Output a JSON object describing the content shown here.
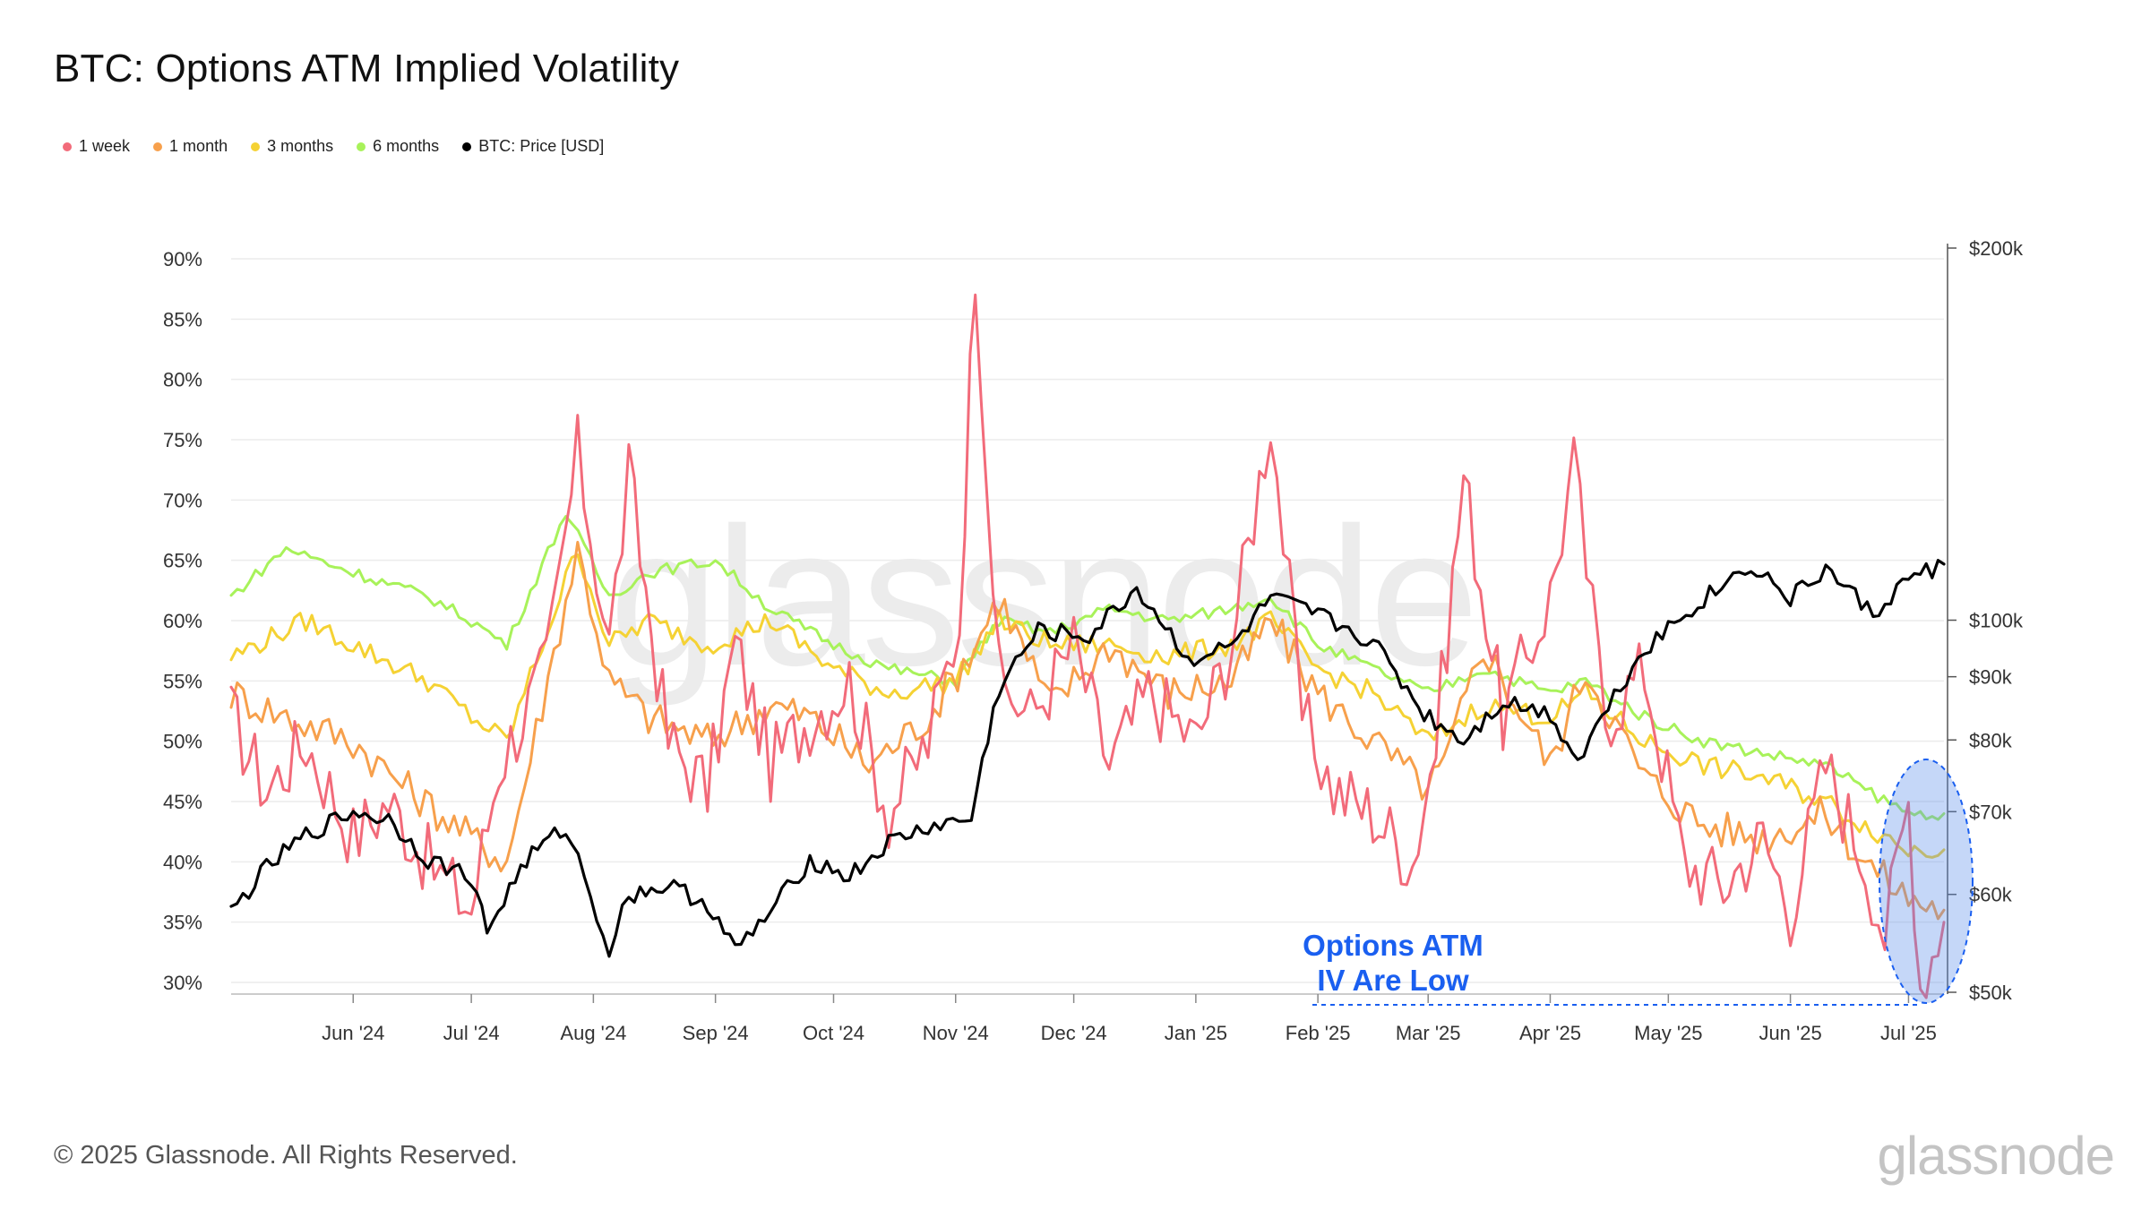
{
  "title": "BTC: Options ATM Implied Volatility",
  "legend": [
    {
      "label": "1 week",
      "color": "#f26b7a"
    },
    {
      "label": "1 month",
      "color": "#f7a04c"
    },
    {
      "label": "3 months",
      "color": "#f5d234"
    },
    {
      "label": "6 months",
      "color": "#a8f25a"
    },
    {
      "label": "BTC: Price [USD]",
      "color": "#000000"
    }
  ],
  "watermark": "glassnode",
  "footer": {
    "copyright": "© 2025 Glassnode. All Rights Reserved.",
    "logo": "glassnode"
  },
  "annotation": {
    "line1": "Options ATM",
    "line2": "IV Are Low",
    "color": "#1a5ff0"
  },
  "chart_data": {
    "type": "line",
    "title": "BTC: Options ATM Implied Volatility",
    "x_start": "2024-05-01",
    "x_end": "2025-07-10",
    "x_ticks": [
      "Jun '24",
      "Jul '24",
      "Aug '24",
      "Sep '24",
      "Oct '24",
      "Nov '24",
      "Dec '24",
      "Jan '25",
      "Feb '25",
      "Mar '25",
      "Apr '25",
      "May '25",
      "Jun '25",
      "Jul '25"
    ],
    "y_left": {
      "ticks": [
        "30%",
        "35%",
        "40%",
        "45%",
        "50%",
        "55%",
        "60%",
        "65%",
        "70%",
        "75%",
        "80%",
        "85%",
        "90%"
      ],
      "min": 29,
      "max": 90,
      "unit": "%"
    },
    "y_right": {
      "ticks": [
        "$50k",
        "$60k",
        "$70k",
        "$80k",
        "$90k",
        "$100k",
        "$200k"
      ],
      "min": 50000,
      "max": 200000,
      "scale": "log"
    },
    "grid": true,
    "legend_position": "top-left",
    "series": [
      {
        "name": "1 week",
        "axis": "left",
        "color": "#f26b7a",
        "dates": [
          "2024-05-01",
          "2024-05-10",
          "2024-05-20",
          "2024-06-01",
          "2024-06-10",
          "2024-06-20",
          "2024-07-01",
          "2024-07-08",
          "2024-07-20",
          "2024-07-28",
          "2024-08-05",
          "2024-08-10",
          "2024-08-20",
          "2024-08-30",
          "2024-09-06",
          "2024-09-15",
          "2024-09-25",
          "2024-10-05",
          "2024-10-15",
          "2024-10-25",
          "2024-11-02",
          "2024-11-06",
          "2024-11-12",
          "2024-11-20",
          "2024-12-01",
          "2024-12-10",
          "2024-12-20",
          "2025-01-01",
          "2025-01-10",
          "2025-01-20",
          "2025-01-28",
          "2025-02-05",
          "2025-02-15",
          "2025-02-25",
          "2025-03-03",
          "2025-03-10",
          "2025-03-20",
          "2025-04-01",
          "2025-04-07",
          "2025-04-15",
          "2025-04-25",
          "2025-05-05",
          "2025-05-15",
          "2025-05-25",
          "2025-06-01",
          "2025-06-10",
          "2025-06-20",
          "2025-06-25",
          "2025-07-01",
          "2025-07-04",
          "2025-07-10"
        ],
        "values": [
          52,
          46,
          50,
          42,
          45,
          40,
          36,
          48,
          56,
          74,
          58,
          72,
          50,
          46,
          58,
          48,
          52,
          55,
          44,
          50,
          60,
          90,
          55,
          52,
          58,
          48,
          54,
          50,
          58,
          77,
          52,
          46,
          44,
          40,
          50,
          72,
          52,
          62,
          73,
          52,
          56,
          40,
          38,
          42,
          36,
          48,
          40,
          34,
          45,
          30,
          35
        ]
      },
      {
        "name": "1 month",
        "axis": "left",
        "color": "#f7a04c",
        "dates": [
          "2024-05-01",
          "2024-05-15",
          "2024-06-01",
          "2024-06-15",
          "2024-07-01",
          "2024-07-10",
          "2024-07-28",
          "2024-08-05",
          "2024-08-15",
          "2024-08-30",
          "2024-09-15",
          "2024-09-25",
          "2024-10-10",
          "2024-10-25",
          "2024-11-06",
          "2024-11-12",
          "2024-11-25",
          "2024-12-10",
          "2024-12-25",
          "2025-01-10",
          "2025-01-20",
          "2025-02-01",
          "2025-02-15",
          "2025-03-01",
          "2025-03-05",
          "2025-03-15",
          "2025-04-01",
          "2025-04-10",
          "2025-04-25",
          "2025-05-10",
          "2025-05-25",
          "2025-06-10",
          "2025-06-20",
          "2025-07-01",
          "2025-07-10"
        ],
        "values": [
          54,
          52,
          50,
          46,
          42,
          40,
          66,
          55,
          52,
          50,
          53,
          52,
          48,
          52,
          58,
          62,
          53,
          58,
          54,
          55,
          60,
          54,
          50,
          46,
          48,
          58,
          48,
          56,
          47,
          43,
          42,
          44,
          40,
          37,
          36
        ]
      },
      {
        "name": "3 months",
        "axis": "left",
        "color": "#f5d234",
        "dates": [
          "2024-05-01",
          "2024-05-20",
          "2024-06-01",
          "2024-06-20",
          "2024-07-01",
          "2024-07-10",
          "2024-07-28",
          "2024-08-05",
          "2024-08-15",
          "2024-08-30",
          "2024-09-15",
          "2024-10-01",
          "2024-10-15",
          "2024-11-01",
          "2024-11-12",
          "2024-11-25",
          "2024-12-10",
          "2024-12-25",
          "2025-01-10",
          "2025-01-20",
          "2025-02-01",
          "2025-02-15",
          "2025-03-01",
          "2025-03-15",
          "2025-04-01",
          "2025-04-10",
          "2025-04-25",
          "2025-05-10",
          "2025-05-25",
          "2025-06-10",
          "2025-06-20",
          "2025-07-01",
          "2025-07-10"
        ],
        "values": [
          57,
          60,
          58,
          55,
          52,
          50,
          66,
          58,
          60,
          58,
          60,
          56,
          54,
          55,
          60,
          58,
          58,
          57,
          58,
          60,
          56,
          54,
          50,
          53,
          52,
          54,
          50,
          48,
          47,
          45,
          43,
          41,
          41
        ]
      },
      {
        "name": "6 months",
        "axis": "left",
        "color": "#a8f25a",
        "dates": [
          "2024-05-01",
          "2024-05-15",
          "2024-06-01",
          "2024-06-20",
          "2024-07-01",
          "2024-07-10",
          "2024-07-25",
          "2024-08-05",
          "2024-08-15",
          "2024-09-01",
          "2024-09-15",
          "2024-10-01",
          "2024-10-15",
          "2024-11-01",
          "2024-11-12",
          "2024-11-25",
          "2024-12-10",
          "2024-12-25",
          "2025-01-10",
          "2025-01-20",
          "2025-02-01",
          "2025-02-15",
          "2025-03-01",
          "2025-03-15",
          "2025-04-01",
          "2025-04-10",
          "2025-04-25",
          "2025-05-10",
          "2025-05-25",
          "2025-06-10",
          "2025-06-20",
          "2025-07-01",
          "2025-07-10"
        ],
        "values": [
          62,
          66,
          64,
          62,
          60,
          58,
          69,
          62,
          64,
          65,
          61,
          58,
          56,
          55,
          60,
          59,
          61,
          60,
          61,
          62,
          58,
          56,
          54,
          56,
          54,
          55,
          52,
          50,
          49,
          48,
          46,
          44,
          44
        ]
      },
      {
        "name": "BTC: Price [USD]",
        "axis": "right",
        "color": "#000000",
        "dates": [
          "2024-05-01",
          "2024-05-10",
          "2024-05-20",
          "2024-06-01",
          "2024-06-10",
          "2024-06-20",
          "2024-07-01",
          "2024-07-05",
          "2024-07-15",
          "2024-07-25",
          "2024-08-05",
          "2024-08-10",
          "2024-08-20",
          "2024-08-30",
          "2024-09-06",
          "2024-09-15",
          "2024-09-25",
          "2024-10-05",
          "2024-10-15",
          "2024-10-25",
          "2024-11-05",
          "2024-11-12",
          "2024-11-22",
          "2024-12-05",
          "2024-12-17",
          "2024-12-30",
          "2025-01-10",
          "2025-01-20",
          "2025-02-01",
          "2025-02-15",
          "2025-02-28",
          "2025-03-10",
          "2025-03-20",
          "2025-04-01",
          "2025-04-08",
          "2025-04-25",
          "2025-05-10",
          "2025-05-22",
          "2025-06-01",
          "2025-06-10",
          "2025-06-22",
          "2025-07-01",
          "2025-07-10"
        ],
        "values": [
          58000,
          63000,
          67000,
          70000,
          69000,
          64000,
          62000,
          56000,
          64000,
          68000,
          54000,
          60000,
          61000,
          59000,
          54000,
          58000,
          64000,
          62000,
          66000,
          68000,
          69000,
          88000,
          98000,
          97000,
          106000,
          93000,
          95000,
          104000,
          101000,
          96000,
          84000,
          80000,
          86000,
          84000,
          77000,
          95000,
          104000,
          111000,
          104000,
          110000,
          101000,
          108000,
          111000
        ]
      }
    ]
  }
}
